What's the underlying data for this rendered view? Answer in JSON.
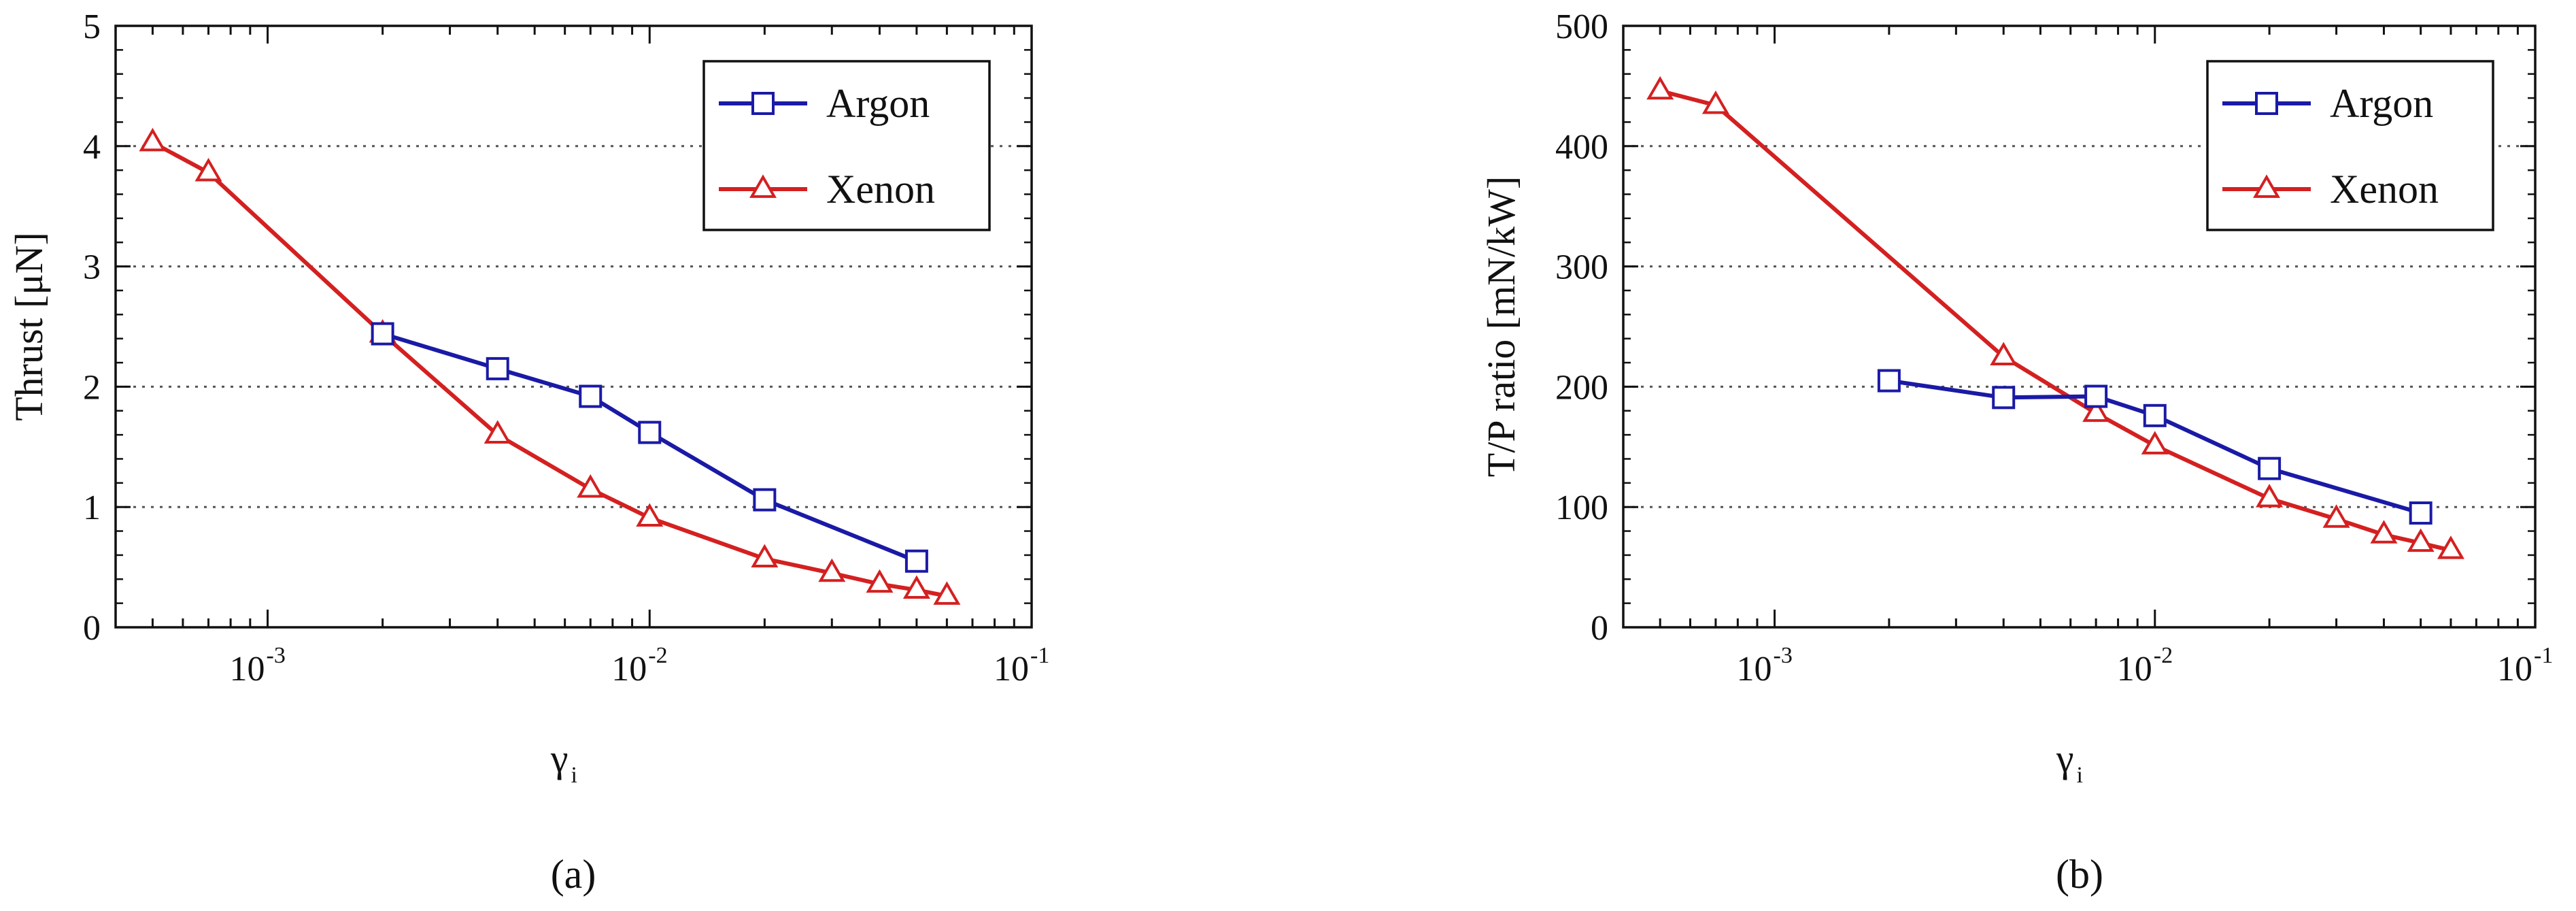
{
  "chart_data": [
    {
      "type": "line",
      "panel_label": "(a)",
      "xlabel": "γ",
      "xlabel_sub": "i",
      "ylabel": "Thrust [μN]",
      "xscale": "log",
      "xlim": [
        0.0004,
        0.1
      ],
      "ylim": [
        0,
        5
      ],
      "yticks": [
        0,
        1,
        2,
        3,
        4,
        5
      ],
      "xticks": [
        {
          "value": 0.001,
          "base": "10",
          "exp": "-3"
        },
        {
          "value": 0.01,
          "base": "10",
          "exp": "-2"
        },
        {
          "value": 0.1,
          "base": "10",
          "exp": "-1"
        }
      ],
      "grid": "horizontal dotted",
      "legend_placement": "top-right",
      "series": [
        {
          "name": "Argon",
          "color": "#1a1aa6",
          "marker": "square",
          "x": [
            0.002,
            0.004,
            0.007,
            0.01,
            0.02,
            0.05
          ],
          "y": [
            2.44,
            2.15,
            1.92,
            1.62,
            1.06,
            0.55
          ]
        },
        {
          "name": "Xenon",
          "color": "#d42020",
          "marker": "triangle",
          "x": [
            0.0005,
            0.0007,
            0.002,
            0.004,
            0.007,
            0.01,
            0.02,
            0.03,
            0.04,
            0.05,
            0.06
          ],
          "y": [
            4.03,
            3.78,
            2.44,
            1.6,
            1.15,
            0.91,
            0.57,
            0.45,
            0.36,
            0.31,
            0.26
          ]
        }
      ]
    },
    {
      "type": "line",
      "panel_label": "(b)",
      "xlabel": "γ",
      "xlabel_sub": "i",
      "ylabel": "T/P ratio [mN/kW]",
      "xscale": "log",
      "xlim": [
        0.0004,
        0.1
      ],
      "ylim": [
        0,
        500
      ],
      "yticks": [
        0,
        100,
        200,
        300,
        400,
        500
      ],
      "xticks": [
        {
          "value": 0.001,
          "base": "10",
          "exp": "-3"
        },
        {
          "value": 0.01,
          "base": "10",
          "exp": "-2"
        },
        {
          "value": 0.1,
          "base": "10",
          "exp": "-1"
        }
      ],
      "grid": "horizontal dotted",
      "legend_placement": "top-right",
      "series": [
        {
          "name": "Argon",
          "color": "#1a1aa6",
          "marker": "square",
          "x": [
            0.002,
            0.004,
            0.007,
            0.01,
            0.02,
            0.05
          ],
          "y": [
            205,
            191,
            192,
            176,
            132,
            95
          ]
        },
        {
          "name": "Xenon",
          "color": "#d42020",
          "marker": "triangle",
          "x": [
            0.0005,
            0.0007,
            0.004,
            0.007,
            0.01,
            0.02,
            0.03,
            0.04,
            0.05,
            0.06
          ],
          "y": [
            446,
            434,
            225,
            178,
            151,
            107,
            90,
            77,
            70,
            64
          ]
        }
      ]
    }
  ]
}
